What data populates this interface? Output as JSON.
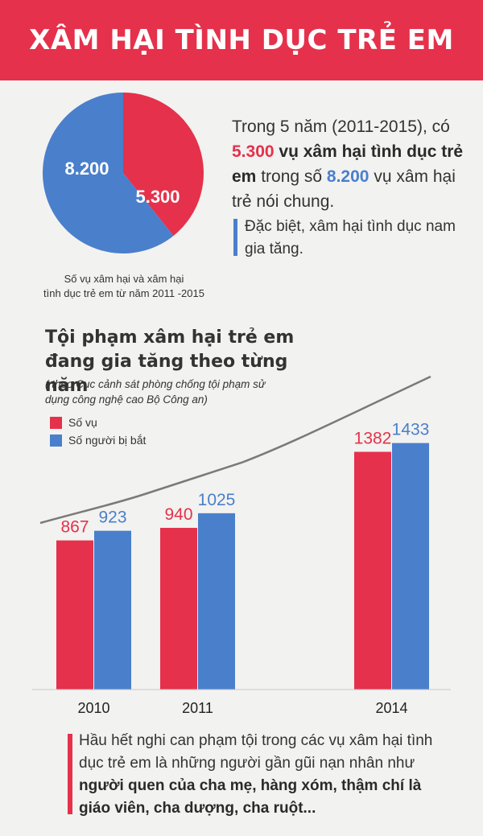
{
  "banner": {
    "title": "XÂM HẠI TÌNH DỤC TRẺ EM"
  },
  "pie": {
    "caption_line1": "Số vụ xâm hại và xâm hại",
    "caption_line2": "tình dục trẻ em từ năm 2011 -2015"
  },
  "intro": {
    "part1": "Trong 5 năm (2011-2015), có ",
    "highlight1": "5.300",
    "bold1": " vụ xâm hại tình dục trẻ em",
    "part2": " trong số ",
    "highlight2": "8.200",
    "part3": " vụ xâm hại trẻ nói chung."
  },
  "note": {
    "text": "Đặc biệt, xâm hại tình dục nam gia tăng."
  },
  "chart": {
    "title": "Tội phạm xâm hại trẻ em đang gia tăng theo từng năm",
    "source": "( theo Cục cảnh sát phòng chống tội phạm sử dụng công nghệ cao Bộ Công an)",
    "legend": {
      "cases": "Số vụ",
      "arrested": "Số người bị bắt"
    }
  },
  "bottom": {
    "part1": "Hầu hết nghi can phạm tội trong các vụ xâm hại tình dục trẻ em là những người gần gũi nạn nhân như ",
    "bold": "người quen của cha mẹ, hàng xóm, thậm chí là giáo viên, cha dượng, cha ruột..."
  },
  "colors": {
    "red": "#e5314b",
    "blue": "#4a7fcc",
    "line": "#7a7a7a",
    "bg": "#f2f2f0"
  },
  "chart_data": [
    {
      "type": "pie",
      "slices": [
        {
          "label": "5.300",
          "value": 5300,
          "color": "#e5314b"
        },
        {
          "label": "8.200",
          "value": 8200,
          "color": "#4a7fcc"
        }
      ]
    },
    {
      "type": "bar",
      "title": "Tội phạm xâm hại trẻ em đang gia tăng theo từng năm",
      "categories": [
        "2010",
        "2011",
        "2014"
      ],
      "series": [
        {
          "name": "Số vụ",
          "values": [
            867,
            940,
            1382
          ],
          "color": "#e5314b"
        },
        {
          "name": "Số người bị bắt",
          "values": [
            923,
            1025,
            1433
          ],
          "color": "#4a7fcc"
        }
      ],
      "ylim": [
        0,
        2200
      ],
      "grid": false,
      "legend": "top-left"
    }
  ]
}
